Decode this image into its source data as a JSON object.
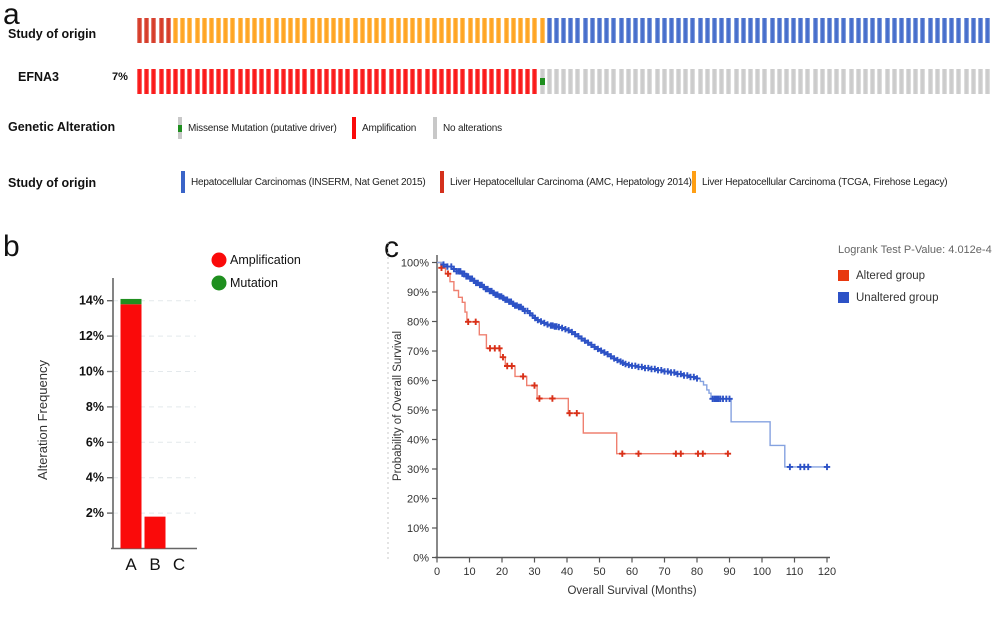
{
  "panel_a": {
    "label": "a",
    "rows": [
      {
        "label": "Study of origin"
      },
      {
        "label": "EFNA3",
        "percent": "7%"
      }
    ],
    "colors": {
      "amplification": "#fa0a0a",
      "missense": "#1f8f1f",
      "none": "#c8c8c8",
      "inserm": "#3a64c8",
      "amc": "#d4301c",
      "tcga": "#ff9f14"
    },
    "track_study": [
      {
        "color_key": "amc",
        "count": 5
      },
      {
        "color_key": "tcga",
        "count": 52
      },
      {
        "color_key": "inserm",
        "count": 62
      }
    ],
    "track_gene": [
      {
        "type": "amplification",
        "count": 56
      },
      {
        "type": "missense",
        "count": 1
      },
      {
        "type": "none",
        "count": 62
      }
    ],
    "genetic_legend": {
      "label": "Genetic Alteration",
      "items": [
        {
          "type": "missense",
          "label": "Missense Mutation (putative driver)"
        },
        {
          "type": "amplification",
          "label": "Amplification"
        },
        {
          "type": "none",
          "label": "No alterations"
        }
      ]
    },
    "study_legend": {
      "label": "Study of origin",
      "items": [
        {
          "color_key": "inserm",
          "label": "Hepatocellular Carcinomas (INSERM, Nat Genet 2015)"
        },
        {
          "color_key": "amc",
          "label": "Liver Hepatocellular Carcinoma (AMC, Hepatology 2014)"
        },
        {
          "color_key": "tcga",
          "label": "Liver Hepatocellular Carcinoma (TCGA, Firehose Legacy)"
        }
      ]
    }
  },
  "panel_b_label": "b",
  "panel_c_label": "c",
  "chart_data": [
    {
      "id": "alteration-frequency-bar",
      "type": "bar",
      "categories": [
        "A",
        "B",
        "C"
      ],
      "series": [
        {
          "name": "Amplification",
          "color": "#fa0a0a",
          "values": [
            13.8,
            1.8,
            0
          ]
        },
        {
          "name": "Mutation",
          "color": "#1f8f1f",
          "values": [
            0.3,
            0,
            0
          ]
        }
      ],
      "ylabel": "Alteration Frequency",
      "yticks": [
        2,
        4,
        6,
        8,
        10,
        12,
        14
      ],
      "ytick_suffix": "%",
      "ylim": [
        0,
        15.2
      ],
      "grid": "dashed",
      "legend_position": "top-right"
    },
    {
      "id": "km-overall-survival",
      "type": "line",
      "subtype": "kaplan-meier",
      "pvalue_label": "Logrank Test P-Value: 4.012e-4",
      "xlabel": "Overall Survival (Months)",
      "ylabel": "Probability of Overall Survival",
      "xticks": [
        0,
        10,
        20,
        30,
        40,
        50,
        60,
        70,
        80,
        90,
        100,
        110,
        120
      ],
      "yticks": [
        0,
        10,
        20,
        30,
        40,
        50,
        60,
        70,
        80,
        90,
        100
      ],
      "ytick_suffix": "%",
      "xlim": [
        0,
        122
      ],
      "ylim": [
        0,
        100
      ],
      "series": [
        {
          "name": "Altered group",
          "swatch_color": "#e8380f",
          "line_color": "#ef8070",
          "marker_color": "#d93018",
          "steps": [
            [
              0,
              100
            ],
            [
              1.2,
              98.2
            ],
            [
              2.6,
              96.2
            ],
            [
              4,
              93.5
            ],
            [
              5.2,
              90.5
            ],
            [
              6.6,
              88.2
            ],
            [
              7.8,
              86.5
            ],
            [
              8.6,
              83.2
            ],
            [
              9.2,
              79.9
            ],
            [
              13,
              75.5
            ],
            [
              15.2,
              70.9
            ],
            [
              19.5,
              67.9
            ],
            [
              21,
              64.9
            ],
            [
              24,
              61.4
            ],
            [
              27.6,
              58.3
            ],
            [
              30.8,
              53.9
            ],
            [
              40.4,
              48.9
            ],
            [
              45,
              42.2
            ],
            [
              55.3,
              35.2
            ],
            [
              90,
              35.2
            ]
          ],
          "censors": [
            1.4,
            3.4,
            9.6,
            11.9,
            16.3,
            17.8,
            19.2,
            20.3,
            21.6,
            23,
            26.5,
            30,
            31.5,
            35.5,
            40.8,
            43,
            57,
            62,
            73.5,
            75,
            80.3,
            81.8,
            89.5
          ]
        },
        {
          "name": "Unaltered group",
          "swatch_color": "#2d52c6",
          "line_color": "#85a2e0",
          "marker_color": "#2d52c6",
          "steps": [
            [
              0,
              100
            ],
            [
              1.5,
              99.3
            ],
            [
              3,
              98.6
            ],
            [
              4.5,
              97.8
            ],
            [
              6,
              97
            ],
            [
              7.5,
              96.2
            ],
            [
              9,
              95.3
            ],
            [
              10,
              94.5
            ],
            [
              11,
              93.8
            ],
            [
              12,
              93.1
            ],
            [
              13,
              92.4
            ],
            [
              14,
              91.7
            ],
            [
              15,
              91
            ],
            [
              16,
              90.3
            ],
            [
              17,
              89.7
            ],
            [
              18,
              89.1
            ],
            [
              19,
              88.5
            ],
            [
              20,
              88
            ],
            [
              21,
              87.4
            ],
            [
              22,
              86.7
            ],
            [
              23,
              86
            ],
            [
              24,
              85.4
            ],
            [
              25,
              84.9
            ],
            [
              26,
              84.3
            ],
            [
              27,
              83.6
            ],
            [
              28,
              82.8
            ],
            [
              29,
              82
            ],
            [
              30,
              81.2
            ],
            [
              31,
              80.5
            ],
            [
              32,
              80
            ],
            [
              33,
              79.5
            ],
            [
              34,
              79
            ],
            [
              35,
              78.6
            ],
            [
              36,
              78.3
            ],
            [
              37,
              78.1
            ],
            [
              38,
              77.8
            ],
            [
              39,
              77.4
            ],
            [
              40,
              77
            ],
            [
              41,
              76.4
            ],
            [
              42,
              75.7
            ],
            [
              43,
              75
            ],
            [
              44,
              74.2
            ],
            [
              45,
              73.5
            ],
            [
              46,
              72.8
            ],
            [
              47,
              72.1
            ],
            [
              48,
              71.4
            ],
            [
              49,
              70.7
            ],
            [
              50,
              70.1
            ],
            [
              51,
              69.5
            ],
            [
              52,
              68.9
            ],
            [
              53,
              68.2
            ],
            [
              54,
              67.5
            ],
            [
              55,
              66.9
            ],
            [
              56,
              66.4
            ],
            [
              57,
              66
            ],
            [
              58,
              65.6
            ],
            [
              59,
              65.3
            ],
            [
              60,
              65
            ],
            [
              62,
              64.6
            ],
            [
              64,
              64.2
            ],
            [
              66,
              63.9
            ],
            [
              68,
              63.5
            ],
            [
              70,
              63.1
            ],
            [
              72,
              62.7
            ],
            [
              74,
              62.2
            ],
            [
              76,
              61.7
            ],
            [
              78,
              61.2
            ],
            [
              80,
              60.7
            ],
            [
              81,
              59.7
            ],
            [
              82,
              58.5
            ],
            [
              83,
              56.8
            ],
            [
              83.7,
              55.7
            ],
            [
              84.3,
              53.8
            ],
            [
              90.5,
              46
            ],
            [
              102.5,
              38
            ],
            [
              107,
              30.7
            ],
            [
              120.5,
              30.7
            ]
          ],
          "censors": [
            2,
            3.2,
            4.4,
            5.2,
            6,
            6.6,
            7.2,
            7.8,
            8.4,
            9,
            9.6,
            10.2,
            10.8,
            11.4,
            12,
            12.6,
            13.2,
            13.8,
            14.4,
            15,
            15.6,
            16.2,
            16.8,
            17.4,
            18,
            18.6,
            19.2,
            19.8,
            20.4,
            21,
            21.6,
            22.2,
            22.8,
            23.4,
            24,
            24.6,
            25.2,
            25.8,
            26.4,
            27,
            27.8,
            28.6,
            29.4,
            30.2,
            31,
            32,
            33,
            34,
            35,
            35.6,
            36.2,
            36.8,
            37.5,
            38.5,
            39.5,
            40.5,
            41.5,
            42.5,
            43.5,
            44.5,
            45.5,
            46.5,
            47.5,
            48.5,
            49.5,
            50.5,
            51.5,
            52.5,
            53.5,
            54.5,
            55.5,
            56.5,
            57.2,
            58,
            59,
            60,
            61,
            62,
            63,
            64,
            65,
            66,
            67,
            68,
            69,
            70,
            71,
            72,
            73,
            74,
            75,
            76,
            77,
            78,
            79,
            80,
            84.8,
            85.4,
            86,
            86.6,
            87.2,
            88,
            89,
            90,
            108.6,
            111.8,
            113,
            114.2,
            120
          ]
        }
      ]
    }
  ]
}
